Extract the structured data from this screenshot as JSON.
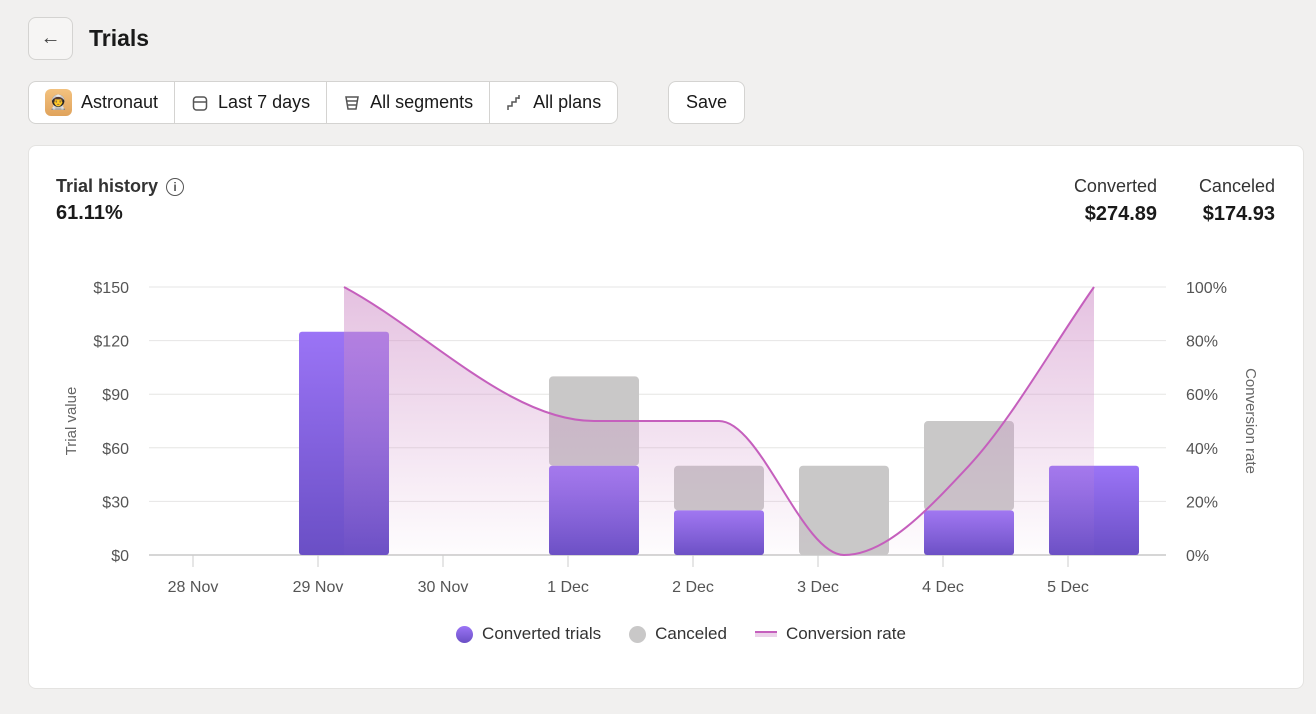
{
  "header": {
    "title": "Trials"
  },
  "filters": [
    {
      "label": "Astronaut",
      "icon": "astronaut-avatar"
    },
    {
      "label": "Last 7 days",
      "icon": "calendar-icon"
    },
    {
      "label": "All segments",
      "icon": "funnel-icon"
    },
    {
      "label": "All plans",
      "icon": "stairs-icon"
    }
  ],
  "save_label": "Save",
  "card": {
    "title": "Trial history",
    "value": "61.11%",
    "converted_label": "Converted",
    "converted_value": "$274.89",
    "canceled_label": "Canceled",
    "canceled_value": "$174.93"
  },
  "legend": {
    "converted": "Converted trials",
    "canceled": "Canceled",
    "rate": "Conversion rate"
  },
  "colors": {
    "converted": "#8b63ec",
    "canceled": "#c9c8c8",
    "rate": "#c55fbd"
  },
  "chart_data": {
    "type": "bar",
    "categories": [
      "28 Nov",
      "29 Nov",
      "30 Nov",
      "1 Dec",
      "2 Dec",
      "3 Dec",
      "4 Dec",
      "5 Dec"
    ],
    "series": [
      {
        "name": "Converted trials",
        "values": [
          0,
          124.95,
          0,
          49.98,
          24.99,
          0,
          24.99,
          49.98
        ]
      },
      {
        "name": "Canceled",
        "values": [
          0,
          0,
          0,
          49.98,
          24.99,
          49.98,
          49.98,
          0
        ]
      },
      {
        "name": "Conversion rate",
        "axis": "right",
        "values": [
          null,
          100,
          null,
          50,
          50,
          0,
          33.33,
          100
        ]
      }
    ],
    "ylabel": "Trial value",
    "y2label": "Conversion rate",
    "ylim": [
      0,
      150
    ],
    "y2lim": [
      0,
      100
    ],
    "yticks": [
      "$0",
      "$30",
      "$60",
      "$90",
      "$120",
      "$150"
    ],
    "y2ticks": [
      "0%",
      "20%",
      "40%",
      "60%",
      "80%",
      "100%"
    ]
  }
}
